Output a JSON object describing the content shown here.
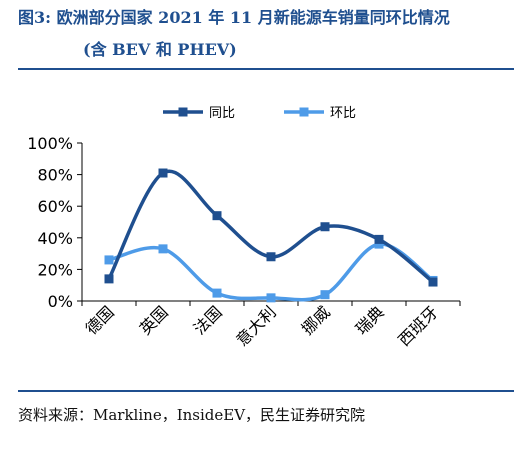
{
  "figure": {
    "title_line1": "图3: 欧洲部分国家 2021 年 11 月新能源车销量同环比情况",
    "title_line2": "(含 BEV 和 PHEV)",
    "source": "资料来源：Markline，InsideEV，民生证券研究院"
  },
  "chart_data": {
    "type": "line",
    "categories": [
      "德国",
      "英国",
      "法国",
      "意大利",
      "挪威",
      "瑞典",
      "西班牙"
    ],
    "series": [
      {
        "name": "同比",
        "color": "#1f4f8f",
        "values": [
          14,
          81,
          54,
          28,
          47,
          39,
          12
        ]
      },
      {
        "name": "环比",
        "color": "#4e9be8",
        "values": [
          26,
          33,
          5,
          2,
          4,
          36,
          13
        ]
      }
    ],
    "y_ticks": [
      "0%",
      "20%",
      "40%",
      "60%",
      "80%",
      "100%"
    ],
    "ylim": [
      0,
      100
    ],
    "grid": false,
    "legend_position": "top-center"
  }
}
